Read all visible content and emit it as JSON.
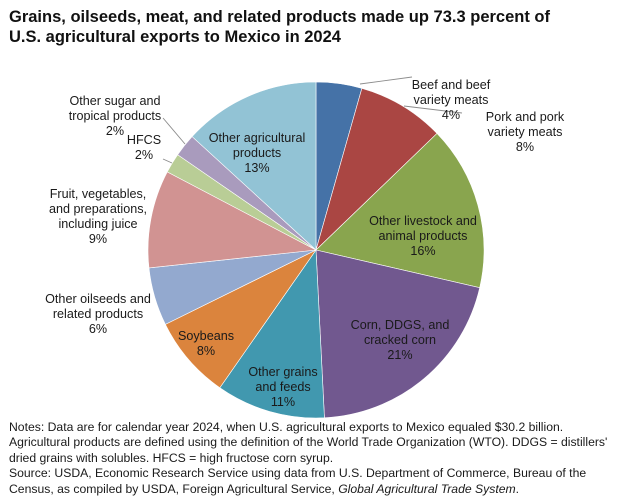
{
  "title_lines": [
    "Grains, oilseeds, meat, and related products made up 73.3 percent of",
    "U.S. agricultural exports to Mexico in 2024"
  ],
  "chart_data": {
    "type": "pie",
    "title": "Grains, oilseeds, meat, and related products made up 73.3 percent of U.S. agricultural exports to Mexico in 2024",
    "start": "12 o'clock",
    "direction": "clockwise",
    "unit": "percent",
    "slices": [
      {
        "name": "Beef and beef variety meats",
        "label_lines": [
          "Beef and beef",
          "variety meats",
          "4%"
        ],
        "value": 4.4,
        "display": "4%",
        "color": "#4572a7"
      },
      {
        "name": "Pork and pork variety meats",
        "label_lines": [
          "Pork and pork",
          "variety meats",
          "8%"
        ],
        "value": 8.4,
        "display": "8%",
        "color": "#aa4643"
      },
      {
        "name": "Other livestock and animal products",
        "label_lines": [
          "Other livestock and",
          "animal products",
          "16%"
        ],
        "value": 15.8,
        "display": "16%",
        "color": "#89a54e"
      },
      {
        "name": "Corn, DDGS, and cracked corn",
        "label_lines": [
          "Corn, DDGS, and",
          "cracked corn",
          "21%"
        ],
        "value": 20.6,
        "display": "21%",
        "color": "#71588f"
      },
      {
        "name": "Other grains and feeds",
        "label_lines": [
          "Other grains",
          "and feeds",
          "11%"
        ],
        "value": 10.5,
        "display": "11%",
        "color": "#4198af"
      },
      {
        "name": "Soybeans",
        "label_lines": [
          "Soybeans",
          "8%"
        ],
        "value": 8.0,
        "display": "8%",
        "color": "#db843d"
      },
      {
        "name": "Other oilseeds and related products",
        "label_lines": [
          "Other oilseeds and",
          "related products",
          "6%"
        ],
        "value": 5.6,
        "display": "6%",
        "color": "#93a9cf"
      },
      {
        "name": "Fruit, vegetables, and preparations, including juice",
        "label_lines": [
          "Fruit, vegetables,",
          "and preparations,",
          "including juice",
          "9%"
        ],
        "value": 9.4,
        "display": "9%",
        "color": "#d19392"
      },
      {
        "name": "HFCS",
        "label_lines": [
          "HFCS",
          "2%"
        ],
        "value": 1.9,
        "display": "2%",
        "color": "#b9cd96"
      },
      {
        "name": "Other sugar and tropical products",
        "label_lines": [
          "Other sugar and",
          "tropical products",
          "2%"
        ],
        "value": 2.2,
        "display": "2%",
        "color": "#a99bbd"
      },
      {
        "name": "Other agricultural products",
        "label_lines": [
          "Other agricultural",
          "products",
          "13%"
        ],
        "value": 13.2,
        "display": "13%",
        "color": "#92c3d5"
      }
    ]
  },
  "notes": {
    "line1": "Notes: Data are for calendar year 2024, when U.S. agricultural exports to Mexico equaled $30.2 billion.",
    "line2": "Agricultural products are defined using the definition of the World Trade Organization (WTO). DDGS = distillers'",
    "line3": "dried grains with solubles. HFCS = high fructose corn syrup.",
    "source_line1": "Source: USDA, Economic Research Service using data from U.S. Department of Commerce, Bureau of the",
    "source_line2_prefix": "Census, as compiled by USDA, Foreign Agricultural Service, ",
    "source_line2_italic": "Global Agricultural Trade System",
    "source_line2_suffix": "."
  }
}
